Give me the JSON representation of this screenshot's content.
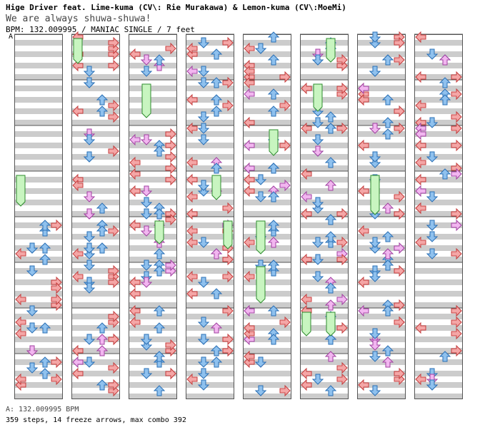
{
  "song": {
    "title": "Hige Driver feat. Lime-kuma (CV\\: Rie Murakawa) & Lemon-kuma (CV\\:MoeMi)",
    "subtitle": "We are always shuwa-shuwa!",
    "meta": "BPM: 132.009995 / MANIAC SINGLE / 7 feet"
  },
  "chart": {
    "segment_label": "A",
    "columns": 8,
    "measures_per_column": 8
  },
  "footer": {
    "bpm_line": "A: 132.009995 BPM",
    "stats": "359 steps, 14 freeze arrows, max combo 392"
  },
  "colors": {
    "band": "#cccccc",
    "border": "#555555",
    "left_right": "#f4a6a6",
    "left_right_stroke": "#c43c3c",
    "up_down": "#8fc1ee",
    "up_down_stroke": "#2a6fb5",
    "off_beat": "#f2b6f0",
    "off_beat_stroke": "#a040a0",
    "freeze": "#c8f5c0",
    "freeze_stroke": "#2e8b2e"
  }
}
